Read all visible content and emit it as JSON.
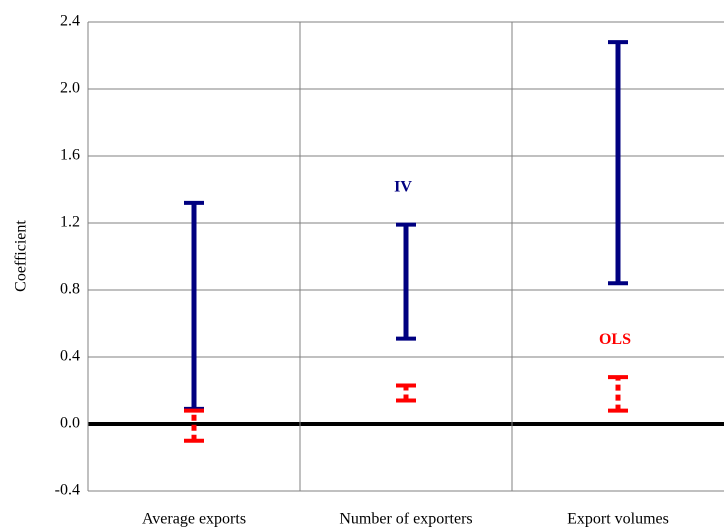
{
  "chart_data": {
    "type": "range",
    "y_label": "Coefficient",
    "categories": [
      "Average exports",
      "Number of exporters",
      "Export volumes"
    ],
    "series": [
      {
        "name": "IV",
        "color": "#000080",
        "style": "solid",
        "low": [
          0.09,
          0.51,
          0.84
        ],
        "high": [
          1.32,
          1.19,
          2.28
        ]
      },
      {
        "name": "OLS",
        "color": "#ff0000",
        "style": "dashed",
        "low": [
          -0.1,
          0.14,
          0.08
        ],
        "high": [
          0.08,
          0.23,
          0.28
        ]
      }
    ],
    "ylim": [
      -0.4,
      2.4
    ],
    "yticks": [
      -0.4,
      {
        "value": 0.0,
        "label": "0.0"
      },
      0.4,
      0.8,
      1.2,
      1.6,
      {
        "value": 2.0,
        "label": "2.0"
      },
      2.4
    ],
    "grid": true
  }
}
